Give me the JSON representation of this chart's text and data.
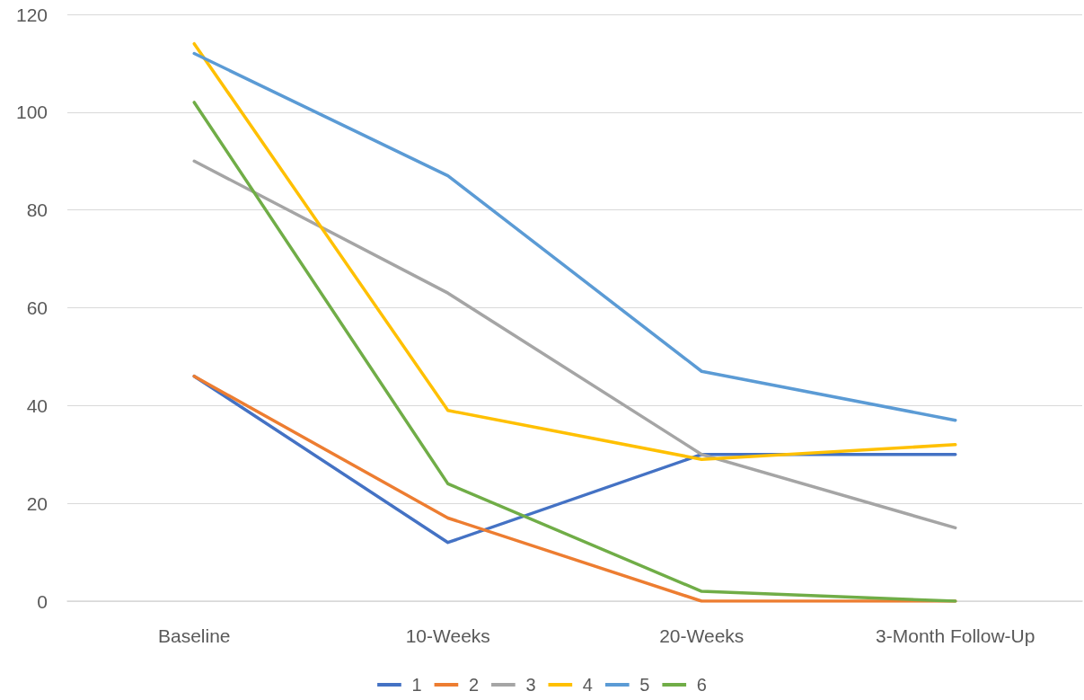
{
  "chart_data": {
    "type": "line",
    "categories": [
      "Baseline",
      "10-Weeks",
      "20-Weeks",
      "3-Month Follow-Up"
    ],
    "series": [
      {
        "name": "1",
        "color": "#4472c4",
        "values": [
          46,
          12,
          30,
          30
        ]
      },
      {
        "name": "2",
        "color": "#ed7d31",
        "values": [
          46,
          17,
          0,
          0
        ]
      },
      {
        "name": "3",
        "color": "#a5a5a5",
        "values": [
          90,
          63,
          30,
          15
        ]
      },
      {
        "name": "4",
        "color": "#ffc000",
        "values": [
          114,
          39,
          29,
          32
        ]
      },
      {
        "name": "5",
        "color": "#5b9bd5",
        "values": [
          112,
          87,
          47,
          37
        ]
      },
      {
        "name": "6",
        "color": "#70ad47",
        "values": [
          102,
          24,
          2,
          0
        ]
      }
    ],
    "ylim": [
      0,
      120
    ],
    "yticks": [
      0,
      20,
      40,
      60,
      80,
      100,
      120
    ],
    "grid": "y",
    "legend": "bottom",
    "marker": "none",
    "line_style": "solid"
  }
}
